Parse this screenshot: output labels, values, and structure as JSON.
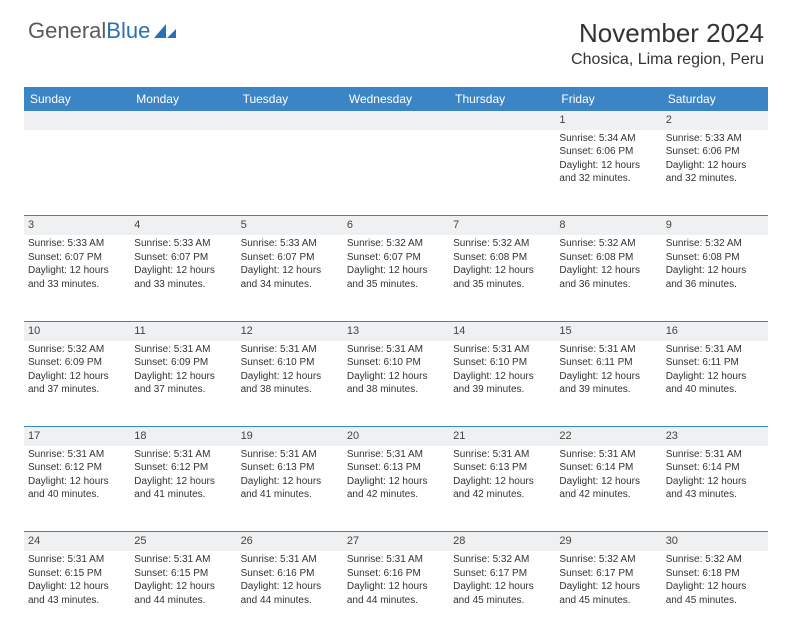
{
  "logo": {
    "text1": "General",
    "text2": "Blue"
  },
  "title": "November 2024",
  "location": "Chosica, Lima region, Peru",
  "colors": {
    "header_bg": "#3b85c6",
    "header_text": "#ffffff",
    "daynum_bg": "#eef0f2",
    "border": "#3b85c6",
    "text": "#333333",
    "logo_gray": "#5a5a5a",
    "logo_blue": "#2d6fb5"
  },
  "weekdays": [
    "Sunday",
    "Monday",
    "Tuesday",
    "Wednesday",
    "Thursday",
    "Friday",
    "Saturday"
  ],
  "weeks": [
    [
      null,
      null,
      null,
      null,
      null,
      {
        "d": "1",
        "sr": "5:34 AM",
        "ss": "6:06 PM",
        "dl": "12 hours and 32 minutes."
      },
      {
        "d": "2",
        "sr": "5:33 AM",
        "ss": "6:06 PM",
        "dl": "12 hours and 32 minutes."
      }
    ],
    [
      {
        "d": "3",
        "sr": "5:33 AM",
        "ss": "6:07 PM",
        "dl": "12 hours and 33 minutes."
      },
      {
        "d": "4",
        "sr": "5:33 AM",
        "ss": "6:07 PM",
        "dl": "12 hours and 33 minutes."
      },
      {
        "d": "5",
        "sr": "5:33 AM",
        "ss": "6:07 PM",
        "dl": "12 hours and 34 minutes."
      },
      {
        "d": "6",
        "sr": "5:32 AM",
        "ss": "6:07 PM",
        "dl": "12 hours and 35 minutes."
      },
      {
        "d": "7",
        "sr": "5:32 AM",
        "ss": "6:08 PM",
        "dl": "12 hours and 35 minutes."
      },
      {
        "d": "8",
        "sr": "5:32 AM",
        "ss": "6:08 PM",
        "dl": "12 hours and 36 minutes."
      },
      {
        "d": "9",
        "sr": "5:32 AM",
        "ss": "6:08 PM",
        "dl": "12 hours and 36 minutes."
      }
    ],
    [
      {
        "d": "10",
        "sr": "5:32 AM",
        "ss": "6:09 PM",
        "dl": "12 hours and 37 minutes."
      },
      {
        "d": "11",
        "sr": "5:31 AM",
        "ss": "6:09 PM",
        "dl": "12 hours and 37 minutes."
      },
      {
        "d": "12",
        "sr": "5:31 AM",
        "ss": "6:10 PM",
        "dl": "12 hours and 38 minutes."
      },
      {
        "d": "13",
        "sr": "5:31 AM",
        "ss": "6:10 PM",
        "dl": "12 hours and 38 minutes."
      },
      {
        "d": "14",
        "sr": "5:31 AM",
        "ss": "6:10 PM",
        "dl": "12 hours and 39 minutes."
      },
      {
        "d": "15",
        "sr": "5:31 AM",
        "ss": "6:11 PM",
        "dl": "12 hours and 39 minutes."
      },
      {
        "d": "16",
        "sr": "5:31 AM",
        "ss": "6:11 PM",
        "dl": "12 hours and 40 minutes."
      }
    ],
    [
      {
        "d": "17",
        "sr": "5:31 AM",
        "ss": "6:12 PM",
        "dl": "12 hours and 40 minutes."
      },
      {
        "d": "18",
        "sr": "5:31 AM",
        "ss": "6:12 PM",
        "dl": "12 hours and 41 minutes."
      },
      {
        "d": "19",
        "sr": "5:31 AM",
        "ss": "6:13 PM",
        "dl": "12 hours and 41 minutes."
      },
      {
        "d": "20",
        "sr": "5:31 AM",
        "ss": "6:13 PM",
        "dl": "12 hours and 42 minutes."
      },
      {
        "d": "21",
        "sr": "5:31 AM",
        "ss": "6:13 PM",
        "dl": "12 hours and 42 minutes."
      },
      {
        "d": "22",
        "sr": "5:31 AM",
        "ss": "6:14 PM",
        "dl": "12 hours and 42 minutes."
      },
      {
        "d": "23",
        "sr": "5:31 AM",
        "ss": "6:14 PM",
        "dl": "12 hours and 43 minutes."
      }
    ],
    [
      {
        "d": "24",
        "sr": "5:31 AM",
        "ss": "6:15 PM",
        "dl": "12 hours and 43 minutes."
      },
      {
        "d": "25",
        "sr": "5:31 AM",
        "ss": "6:15 PM",
        "dl": "12 hours and 44 minutes."
      },
      {
        "d": "26",
        "sr": "5:31 AM",
        "ss": "6:16 PM",
        "dl": "12 hours and 44 minutes."
      },
      {
        "d": "27",
        "sr": "5:31 AM",
        "ss": "6:16 PM",
        "dl": "12 hours and 44 minutes."
      },
      {
        "d": "28",
        "sr": "5:32 AM",
        "ss": "6:17 PM",
        "dl": "12 hours and 45 minutes."
      },
      {
        "d": "29",
        "sr": "5:32 AM",
        "ss": "6:17 PM",
        "dl": "12 hours and 45 minutes."
      },
      {
        "d": "30",
        "sr": "5:32 AM",
        "ss": "6:18 PM",
        "dl": "12 hours and 45 minutes."
      }
    ]
  ],
  "labels": {
    "sunrise": "Sunrise:",
    "sunset": "Sunset:",
    "daylight": "Daylight:"
  }
}
